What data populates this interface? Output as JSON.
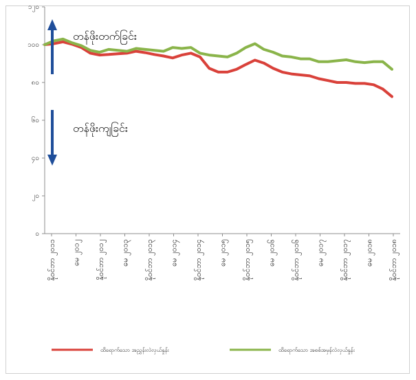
{
  "chart_data": {
    "type": "line",
    "title": "",
    "xlabel": "",
    "ylabel": "",
    "y_ticks": [
      "၁၂၀",
      "၁၀၀",
      "၈၀",
      "၆၀",
      "၄၀",
      "၂၀",
      "၀"
    ],
    "y_tick_values": [
      120,
      100,
      80,
      60,
      40,
      20,
      0
    ],
    "ylim": [
      0,
      120
    ],
    "x_ticks": [
      "နိုဝင်ဘာ ၂၀၁၁",
      "မေ ၂၀၁၂",
      "နိုဝင်ဘာ ၂၀၁၂",
      "မေ ၂၀၁၃",
      "နိုဝင်ဘာ ၂၀၁၃",
      "မေ ၂၀၁၄",
      "နိုဝင်ဘာ ၂၀၁၄",
      "မေ ၂၀၁၅",
      "နိုဝင်ဘာ ၂၀၁၅",
      "မေ ၂၀၁၆",
      "နိုဝင်ဘာ ၂၀၁၆",
      "မေ ၂၀၁၇",
      "နိုဝင်ဘာ ၂၀၁၇",
      "မေ ၂၀၁၈",
      "နိုဝင်ဘာ ၂၀၁၈"
    ],
    "grid": false,
    "legend_position": "bottom",
    "series": [
      {
        "name": "ထိရောက်သော အညွှန်းလဲလှယ်နှုန်း",
        "color": "#d9413a",
        "values": [
          100,
          100.5,
          101.5,
          100.2,
          98.5,
          95.5,
          94.5,
          94.8,
          95.2,
          95.5,
          96.5,
          95.8,
          94.8,
          94,
          93,
          94.5,
          95.5,
          93.5,
          87.5,
          85.5,
          85.5,
          87,
          89.5,
          91.8,
          90.2,
          87.5,
          85.5,
          84.5,
          84,
          83.5,
          82,
          81,
          80,
          80,
          79.5,
          79.5,
          78.8,
          76.5,
          72.5
        ]
      },
      {
        "name": "ထိရောက်သော အစစ်အမှန်လဲလှယ်နှုန်း",
        "color": "#8ab44a",
        "values": [
          100,
          102,
          103,
          101,
          99.5,
          97,
          96,
          97.5,
          97,
          96.5,
          98,
          97.5,
          97,
          96.5,
          98.5,
          98,
          98.5,
          95.5,
          94.5,
          94,
          93.5,
          95.5,
          98.5,
          100.5,
          97.5,
          96,
          94,
          93.5,
          92.5,
          92.5,
          91,
          91,
          91.5,
          92,
          91,
          90.5,
          91,
          91,
          87
        ]
      }
    ],
    "annotations": [
      "တန်ဖိုးတက်ခြင်း",
      "တန်ဖိုးကျခြင်း"
    ]
  },
  "colors": {
    "arrow": "#1f4e9a",
    "axis": "#8c8c8c"
  },
  "icons": {
    "up_arrow": "up-arrow-icon",
    "down_arrow": "down-arrow-icon"
  }
}
